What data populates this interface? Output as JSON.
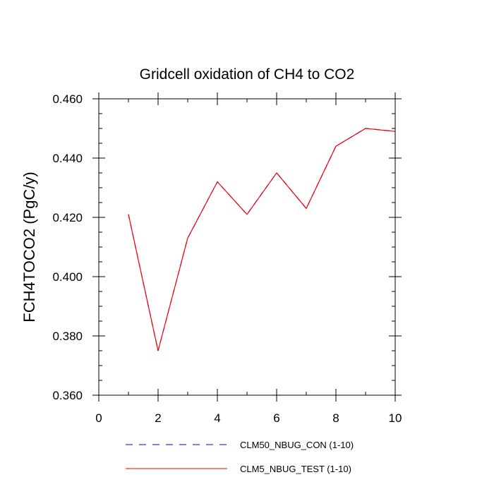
{
  "chart_data": {
    "type": "line",
    "title": "Gridcell oxidation of CH4 to CO2",
    "xlabel": "",
    "ylabel": "FCH4TOCO2  (PgC/y)",
    "xlim": [
      0,
      10
    ],
    "ylim": [
      0.36,
      0.46
    ],
    "x_ticks": [
      0,
      2,
      4,
      6,
      8,
      10
    ],
    "x_tick_labels": [
      "0",
      "2",
      "4",
      "6",
      "8",
      "10"
    ],
    "y_ticks": [
      0.36,
      0.38,
      0.4,
      0.42,
      0.44,
      0.46
    ],
    "y_tick_labels": [
      "0.360",
      "0.380",
      "0.400",
      "0.420",
      "0.440",
      "0.460"
    ],
    "grid": false,
    "legend_position": "bottom",
    "x": [
      1,
      2,
      3,
      4,
      5,
      6,
      7,
      8,
      9,
      10
    ],
    "series": [
      {
        "name": "CLM50_NBUG_CON (1-10)",
        "color": "#0000ff",
        "style": "dashed",
        "values": [
          0.421,
          0.375,
          0.413,
          0.432,
          0.421,
          0.435,
          0.423,
          0.444,
          0.45,
          0.449
        ]
      },
      {
        "name": "CLM5_NBUG_TEST (1-10)",
        "color": "#ff0000",
        "style": "solid",
        "values": [
          0.421,
          0.375,
          0.413,
          0.432,
          0.421,
          0.435,
          0.423,
          0.444,
          0.45,
          0.449
        ]
      }
    ]
  }
}
